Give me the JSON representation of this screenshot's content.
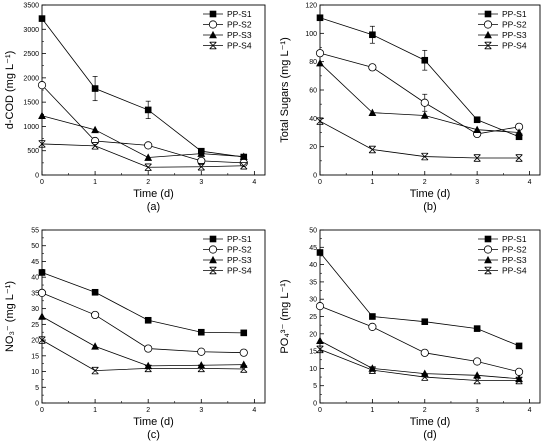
{
  "chart_data": [
    {
      "type": "line",
      "panel_label": "(a)",
      "xlabel": "Time (d)",
      "ylabel": "d-COD (mg L⁻¹)",
      "xlim": [
        0,
        4.2
      ],
      "xticks": [
        0,
        1,
        2,
        3,
        4
      ],
      "ylim": [
        0,
        3500
      ],
      "yticks": [
        0,
        500,
        1000,
        1500,
        2000,
        2500,
        3000,
        3500
      ],
      "legend_position": "top-right",
      "series": [
        {
          "name": "PP-S1",
          "marker": "square",
          "x": [
            0,
            1,
            2,
            3,
            3.8
          ],
          "y": [
            3220,
            1780,
            1340,
            490,
            370
          ],
          "err": [
            0,
            250,
            180,
            0,
            0
          ]
        },
        {
          "name": "PP-S2",
          "marker": "circle",
          "x": [
            0,
            1,
            2,
            3,
            3.8
          ],
          "y": [
            1850,
            700,
            610,
            290,
            250
          ],
          "err": [
            0,
            0,
            0,
            0,
            0
          ]
        },
        {
          "name": "PP-S3",
          "marker": "triangle",
          "x": [
            0,
            1,
            2,
            3,
            3.8
          ],
          "y": [
            1220,
            930,
            360,
            440,
            380
          ],
          "err": [
            0,
            0,
            0,
            0,
            0
          ]
        },
        {
          "name": "PP-S4",
          "marker": "crossed",
          "x": [
            0,
            1,
            2,
            3,
            3.8
          ],
          "y": [
            640,
            600,
            160,
            170,
            190
          ],
          "err": [
            0,
            0,
            0,
            0,
            0
          ]
        }
      ]
    },
    {
      "type": "line",
      "panel_label": "(b)",
      "xlabel": "Time (d)",
      "ylabel": "Total Sugars  (mg L⁻¹)",
      "xlim": [
        0,
        4.2
      ],
      "xticks": [
        0,
        1,
        2,
        3,
        4
      ],
      "ylim": [
        0,
        120
      ],
      "yticks": [
        0,
        20,
        40,
        60,
        80,
        100,
        120
      ],
      "legend_position": "top-right",
      "series": [
        {
          "name": "PP-S1",
          "marker": "square",
          "x": [
            0,
            1,
            2,
            3,
            3.8
          ],
          "y": [
            111,
            99,
            81,
            39,
            27
          ],
          "err": [
            0,
            6,
            7,
            0,
            0
          ]
        },
        {
          "name": "PP-S2",
          "marker": "circle",
          "x": [
            0,
            1,
            2,
            3,
            3.8
          ],
          "y": [
            86,
            76,
            51,
            29,
            34
          ],
          "err": [
            0,
            0,
            6,
            0,
            0
          ]
        },
        {
          "name": "PP-S3",
          "marker": "triangle",
          "x": [
            0,
            1,
            2,
            3,
            3.8
          ],
          "y": [
            79,
            44,
            42,
            32,
            30
          ],
          "err": [
            0,
            0,
            0,
            0,
            0
          ]
        },
        {
          "name": "PP-S4",
          "marker": "crossed",
          "x": [
            0,
            1,
            2,
            3,
            3.8
          ],
          "y": [
            38,
            18,
            13,
            12,
            12
          ],
          "err": [
            0,
            0,
            0,
            0,
            0
          ]
        }
      ]
    },
    {
      "type": "line",
      "panel_label": "(c)",
      "xlabel": "Time (d)",
      "ylabel": "NO₃⁻ (mg L⁻¹)",
      "xlim": [
        0,
        4.2
      ],
      "xticks": [
        0,
        1,
        2,
        3,
        4
      ],
      "ylim": [
        0,
        55
      ],
      "yticks": [
        0,
        5,
        10,
        15,
        20,
        25,
        30,
        35,
        40,
        45,
        50,
        55
      ],
      "legend_position": "top-right",
      "series": [
        {
          "name": "PP-S1",
          "marker": "square",
          "x": [
            0,
            1,
            2,
            3,
            3.8
          ],
          "y": [
            41.5,
            35.2,
            26.3,
            22.5,
            22.3
          ],
          "err": [
            0,
            0,
            0,
            0,
            0
          ]
        },
        {
          "name": "PP-S2",
          "marker": "circle",
          "x": [
            0,
            1,
            2,
            3,
            3.8
          ],
          "y": [
            35.0,
            28.0,
            17.3,
            16.3,
            16.0
          ],
          "err": [
            0,
            0,
            0,
            0,
            0
          ]
        },
        {
          "name": "PP-S3",
          "marker": "triangle",
          "x": [
            0,
            1,
            2,
            3,
            3.8
          ],
          "y": [
            27.5,
            18.0,
            11.8,
            12.0,
            12.2
          ],
          "err": [
            0,
            0,
            0,
            0,
            0
          ]
        },
        {
          "name": "PP-S4",
          "marker": "crossed",
          "x": [
            0,
            1,
            2,
            3,
            3.8
          ],
          "y": [
            20.0,
            10.3,
            11.0,
            11.0,
            10.8
          ],
          "err": [
            0,
            0,
            0,
            0,
            0
          ]
        }
      ]
    },
    {
      "type": "line",
      "panel_label": "(d)",
      "xlabel": "Time (d)",
      "ylabel": "PO₄³⁻ (mg L⁻¹)",
      "xlim": [
        0,
        4.2
      ],
      "xticks": [
        0,
        1,
        2,
        3,
        4
      ],
      "ylim": [
        0,
        50
      ],
      "yticks": [
        0,
        5,
        10,
        15,
        20,
        25,
        30,
        35,
        40,
        45,
        50
      ],
      "legend_position": "top-right",
      "series": [
        {
          "name": "PP-S1",
          "marker": "square",
          "x": [
            0,
            1,
            2,
            3,
            3.8
          ],
          "y": [
            43.5,
            25.0,
            23.5,
            21.5,
            16.5
          ],
          "err": [
            0,
            0,
            0,
            0,
            0
          ]
        },
        {
          "name": "PP-S2",
          "marker": "circle",
          "x": [
            0,
            1,
            2,
            3,
            3.8
          ],
          "y": [
            28.0,
            22.0,
            14.5,
            12.0,
            9.0
          ],
          "err": [
            0,
            0,
            0,
            0,
            0
          ]
        },
        {
          "name": "PP-S3",
          "marker": "triangle",
          "x": [
            0,
            1,
            2,
            3,
            3.8
          ],
          "y": [
            18.0,
            10.0,
            8.5,
            8.0,
            7.0
          ],
          "err": [
            0,
            0,
            0,
            0,
            0
          ]
        },
        {
          "name": "PP-S4",
          "marker": "crossed",
          "x": [
            0,
            1,
            2,
            3,
            3.8
          ],
          "y": [
            15.5,
            9.5,
            7.5,
            6.5,
            6.5
          ],
          "err": [
            0,
            0,
            0,
            0,
            0
          ]
        }
      ]
    }
  ]
}
